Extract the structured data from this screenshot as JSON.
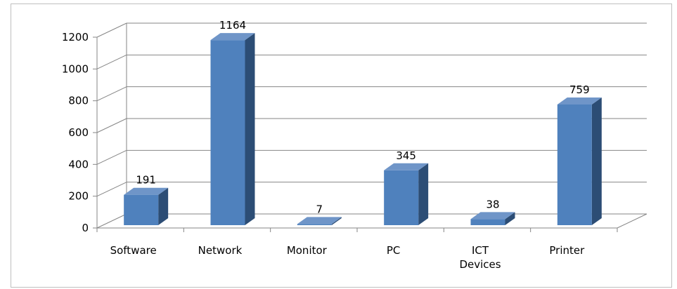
{
  "chart_data": {
    "type": "bar3d",
    "categories": [
      "Software",
      "Network",
      "Monitor",
      "PC",
      "ICT Devices",
      "Printer"
    ],
    "values": [
      191,
      1164,
      7,
      345,
      38,
      759
    ],
    "color": "#4f81bd",
    "ylim": [
      0,
      1200
    ],
    "yticks": [
      0,
      200,
      400,
      600,
      800,
      1000,
      1200
    ],
    "grid": true
  }
}
